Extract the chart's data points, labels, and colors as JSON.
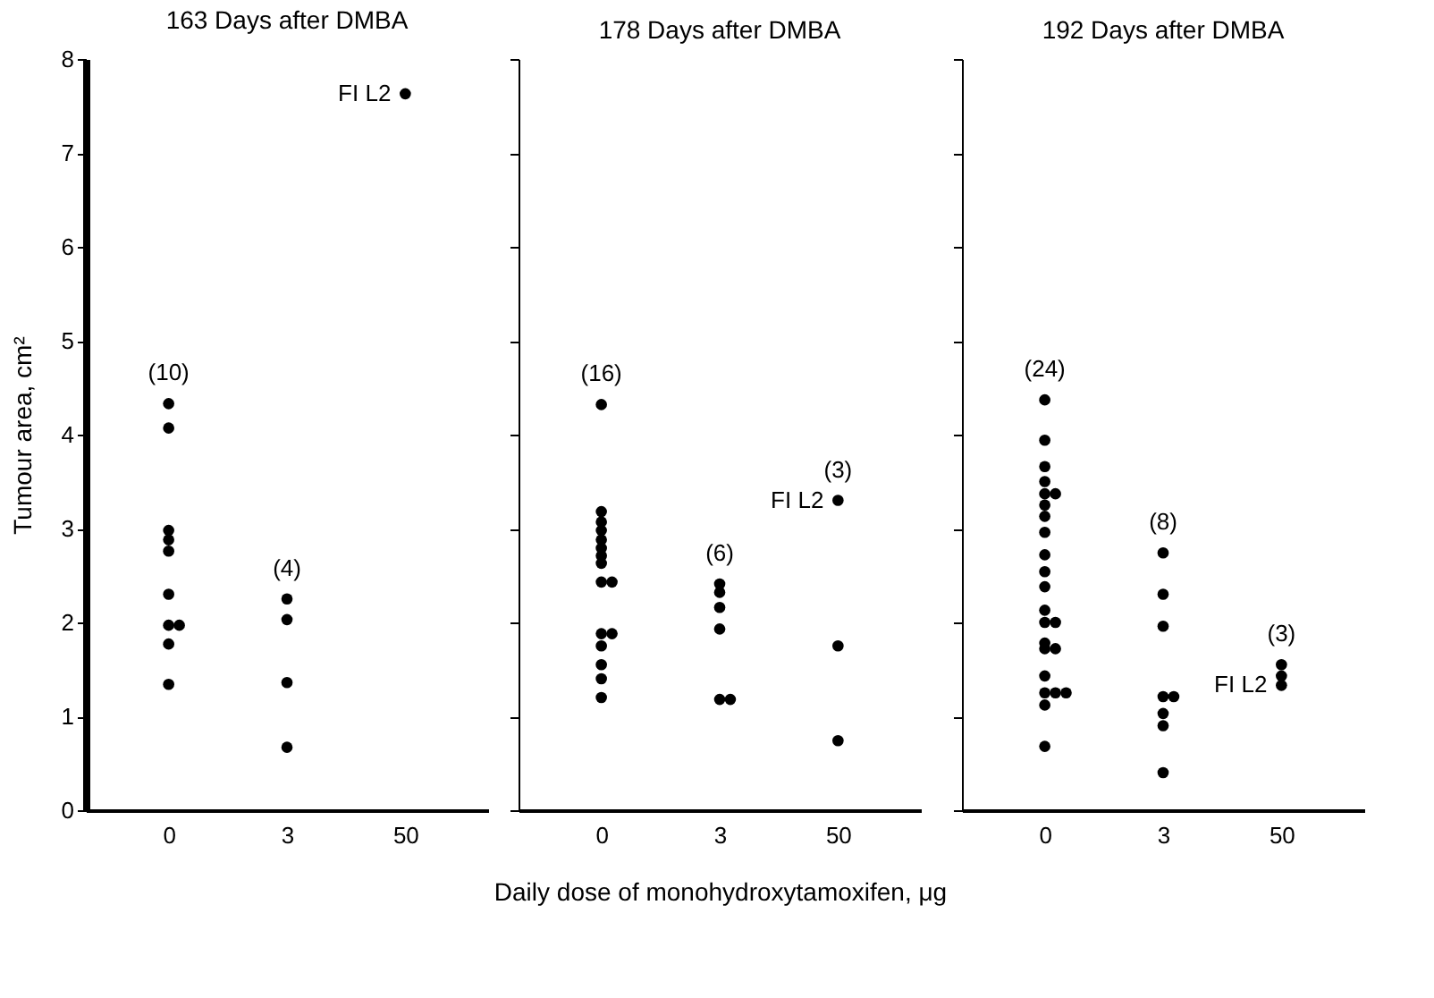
{
  "chart_data": [
    {
      "type": "scatter",
      "title": "163 Days after DMBA",
      "ylabel": "Tumour area, cm²",
      "categories": [
        "0",
        "3",
        "50"
      ],
      "ylim": [
        0,
        8
      ],
      "yticks": [
        0,
        1,
        2,
        3,
        4,
        5,
        6,
        7,
        8
      ],
      "marker": "circle",
      "grid": false,
      "series": [
        {
          "color": "#000000",
          "x": [
            "0",
            "0",
            "0",
            "0",
            "0",
            "0",
            "0",
            "0",
            "0",
            "0",
            "3",
            "3",
            "3",
            "3",
            "50"
          ],
          "values": [
            4.33,
            4.07,
            2.98,
            2.88,
            2.76,
            2.3,
            1.97,
            1.97,
            1.77,
            1.34,
            2.25,
            2.03,
            1.36,
            0.67,
            7.63
          ]
        }
      ],
      "annotations": [
        "(10)",
        "(4)",
        {
          "text": "FI L2",
          "x": "50",
          "y": 7.63
        }
      ]
    },
    {
      "type": "scatter",
      "title": "178 Days after DMBA",
      "xlabel": "Daily dose of monohydroxytamoxifen,  μg",
      "categories": [
        "0",
        "3",
        "50"
      ],
      "ylim": [
        0,
        8
      ],
      "yticks": [
        0,
        1,
        2,
        3,
        4,
        5,
        6,
        7,
        8
      ],
      "tick_labels": "x",
      "marker": "circle",
      "grid": false,
      "series": [
        {
          "color": "#000000",
          "x": [
            "0",
            "0",
            "0",
            "0",
            "0",
            "0",
            "0",
            "0",
            "0",
            "0",
            "0",
            "0",
            "0",
            "0",
            "0",
            "0",
            "3",
            "3",
            "3",
            "3",
            "3",
            "3",
            "50",
            "50",
            "50"
          ],
          "values": [
            4.32,
            3.18,
            3.07,
            2.98,
            2.88,
            2.79,
            2.71,
            2.63,
            2.43,
            2.43,
            1.88,
            1.88,
            1.75,
            1.55,
            1.4,
            1.2,
            2.41,
            2.32,
            2.16,
            1.93,
            1.18,
            1.18,
            3.3,
            1.75,
            0.74
          ]
        }
      ],
      "annotations": [
        "(16)",
        "(6)",
        "(3)",
        {
          "text": "FI L2",
          "x": "50",
          "y": 3.3
        }
      ]
    },
    {
      "type": "scatter",
      "title": "192 Days after DMBA",
      "categories": [
        "0",
        "3",
        "50"
      ],
      "ylim": [
        0,
        8
      ],
      "yticks": [
        0,
        1,
        2,
        3,
        4,
        5,
        6,
        7,
        8
      ],
      "tick_labels": "x",
      "marker": "circle",
      "grid": false,
      "series": [
        {
          "color": "#000000",
          "x": [
            "0",
            "0",
            "0",
            "0",
            "0",
            "0",
            "0",
            "0",
            "0",
            "0",
            "0",
            "0",
            "0",
            "0",
            "0",
            "0",
            "0",
            "0",
            "0",
            "0",
            "0",
            "0",
            "0",
            "0",
            "3",
            "3",
            "3",
            "3",
            "3",
            "3",
            "3",
            "3",
            "50",
            "50",
            "50"
          ],
          "values": [
            4.37,
            3.94,
            3.66,
            3.5,
            3.37,
            3.37,
            3.25,
            3.13,
            2.96,
            2.72,
            2.54,
            2.38,
            2.13,
            2.0,
            2.0,
            1.78,
            1.72,
            1.72,
            1.43,
            1.25,
            1.25,
            1.25,
            1.12,
            0.68,
            2.74,
            2.3,
            1.96,
            1.21,
            1.21,
            1.03,
            0.9,
            0.4,
            1.55,
            1.43,
            1.33
          ]
        }
      ],
      "annotations": [
        "(24)",
        "(8)",
        "(3)",
        {
          "text": "FI L2",
          "x": "50",
          "y": 1.33
        }
      ]
    }
  ]
}
